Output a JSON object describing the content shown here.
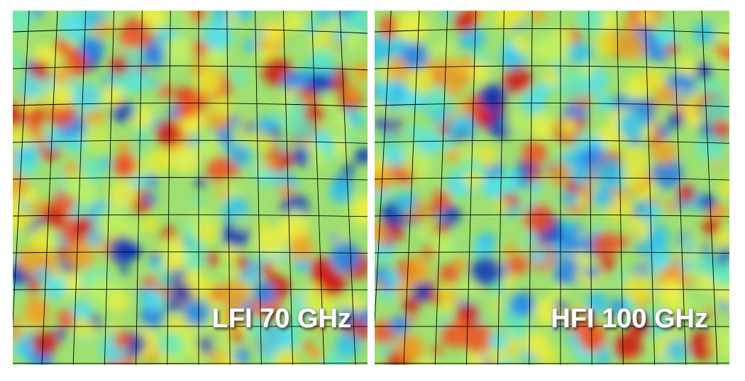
{
  "panels": [
    {
      "label": "LFI 70 GHz"
    },
    {
      "label": "HFI 100 GHz"
    }
  ]
}
